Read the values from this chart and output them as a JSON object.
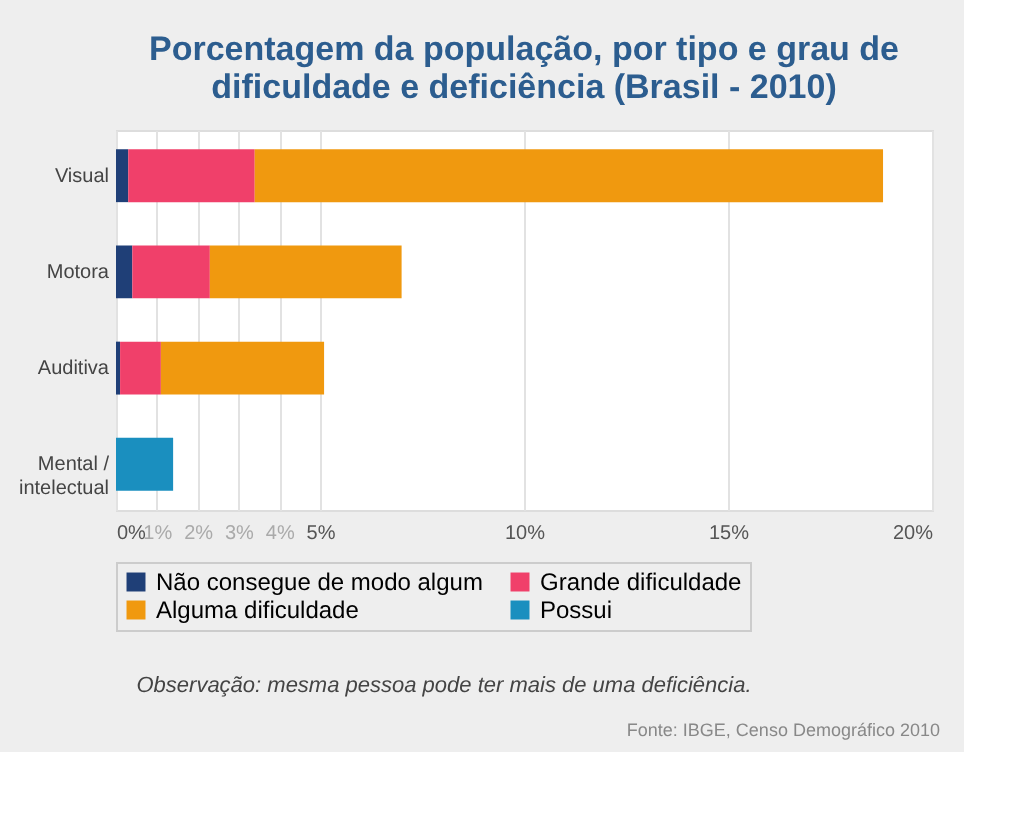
{
  "chart_data": {
    "type": "bar",
    "orientation": "horizontal",
    "stacked": true,
    "title": "Porcentagem da população, por tipo e grau de dificuldade e deficiência (Brasil - 2010)",
    "categories": [
      "Visual",
      "Motora",
      "Auditiva",
      "Mental / intelectual"
    ],
    "series": [
      {
        "name": "Não consegue de modo algum",
        "color": "#1f3f77",
        "values": [
          0.3,
          0.4,
          0.1,
          null
        ]
      },
      {
        "name": "Grande dificuldade",
        "color": "#f0406a",
        "values": [
          3.1,
          1.9,
          1.0,
          null
        ]
      },
      {
        "name": "Alguma dificuldade",
        "color": "#f0990f",
        "values": [
          15.4,
          4.7,
          4.0,
          null
        ]
      },
      {
        "name": "Possui",
        "color": "#1a8fbf",
        "values": [
          null,
          null,
          null,
          1.4
        ]
      }
    ],
    "xlim": [
      0,
      20
    ],
    "xticks": [
      {
        "value": 0,
        "label": "0%"
      },
      {
        "value": 1,
        "label": "1%"
      },
      {
        "value": 2,
        "label": "2%"
      },
      {
        "value": 3,
        "label": "3%"
      },
      {
        "value": 4,
        "label": "4%"
      },
      {
        "value": 5,
        "label": "5%"
      },
      {
        "value": 10,
        "label": "10%"
      },
      {
        "value": 15,
        "label": "15%"
      },
      {
        "value": 20,
        "label": "20%"
      }
    ],
    "grid": "x",
    "legend": "bottom",
    "annotations": [
      "Observação: mesma pessoa pode ter mais de uma deficiência.",
      "Fonte: IBGE, Censo Demográfico 2010"
    ]
  }
}
